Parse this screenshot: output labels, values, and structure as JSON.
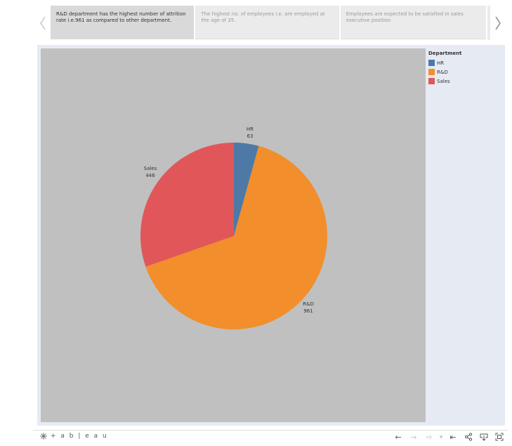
{
  "story": {
    "prev_icon": "chevron-left-icon",
    "next_icon": "chevron-right-icon",
    "points": [
      {
        "text": "R&D department has the highest number of attrition  rate i.e.961 as compared to other department.",
        "active": true
      },
      {
        "text": "The highest no. of employees i.e. are employed at the age of 35.",
        "active": false
      },
      {
        "text": "Employees are expected to be satisfied in sales executive position",
        "active": false
      }
    ]
  },
  "legend": {
    "title": "Department",
    "items": [
      {
        "label": "HR",
        "color": "#4e79a7"
      },
      {
        "label": "R&D",
        "color": "#f28e2b"
      },
      {
        "label": "Sales",
        "color": "#e15759"
      }
    ]
  },
  "chart_data": {
    "type": "pie",
    "title": "",
    "categories": [
      "HR",
      "R&D",
      "Sales"
    ],
    "values": [
      63,
      961,
      446
    ],
    "colors": [
      "#4e79a7",
      "#f28e2b",
      "#e15759"
    ],
    "label_names": [
      "HR",
      "R&D",
      "Sales"
    ],
    "label_values": [
      "63",
      "961",
      "446"
    ],
    "legend_position": "top-right",
    "background": "#c0c0c0"
  },
  "footer": {
    "brand": "+ a b | e a u",
    "tools": [
      "undo-icon",
      "redo-icon",
      "revert-icon",
      "dropdown-icon",
      "reset-icon",
      "share-icon",
      "download-icon",
      "fullscreen-icon"
    ]
  }
}
